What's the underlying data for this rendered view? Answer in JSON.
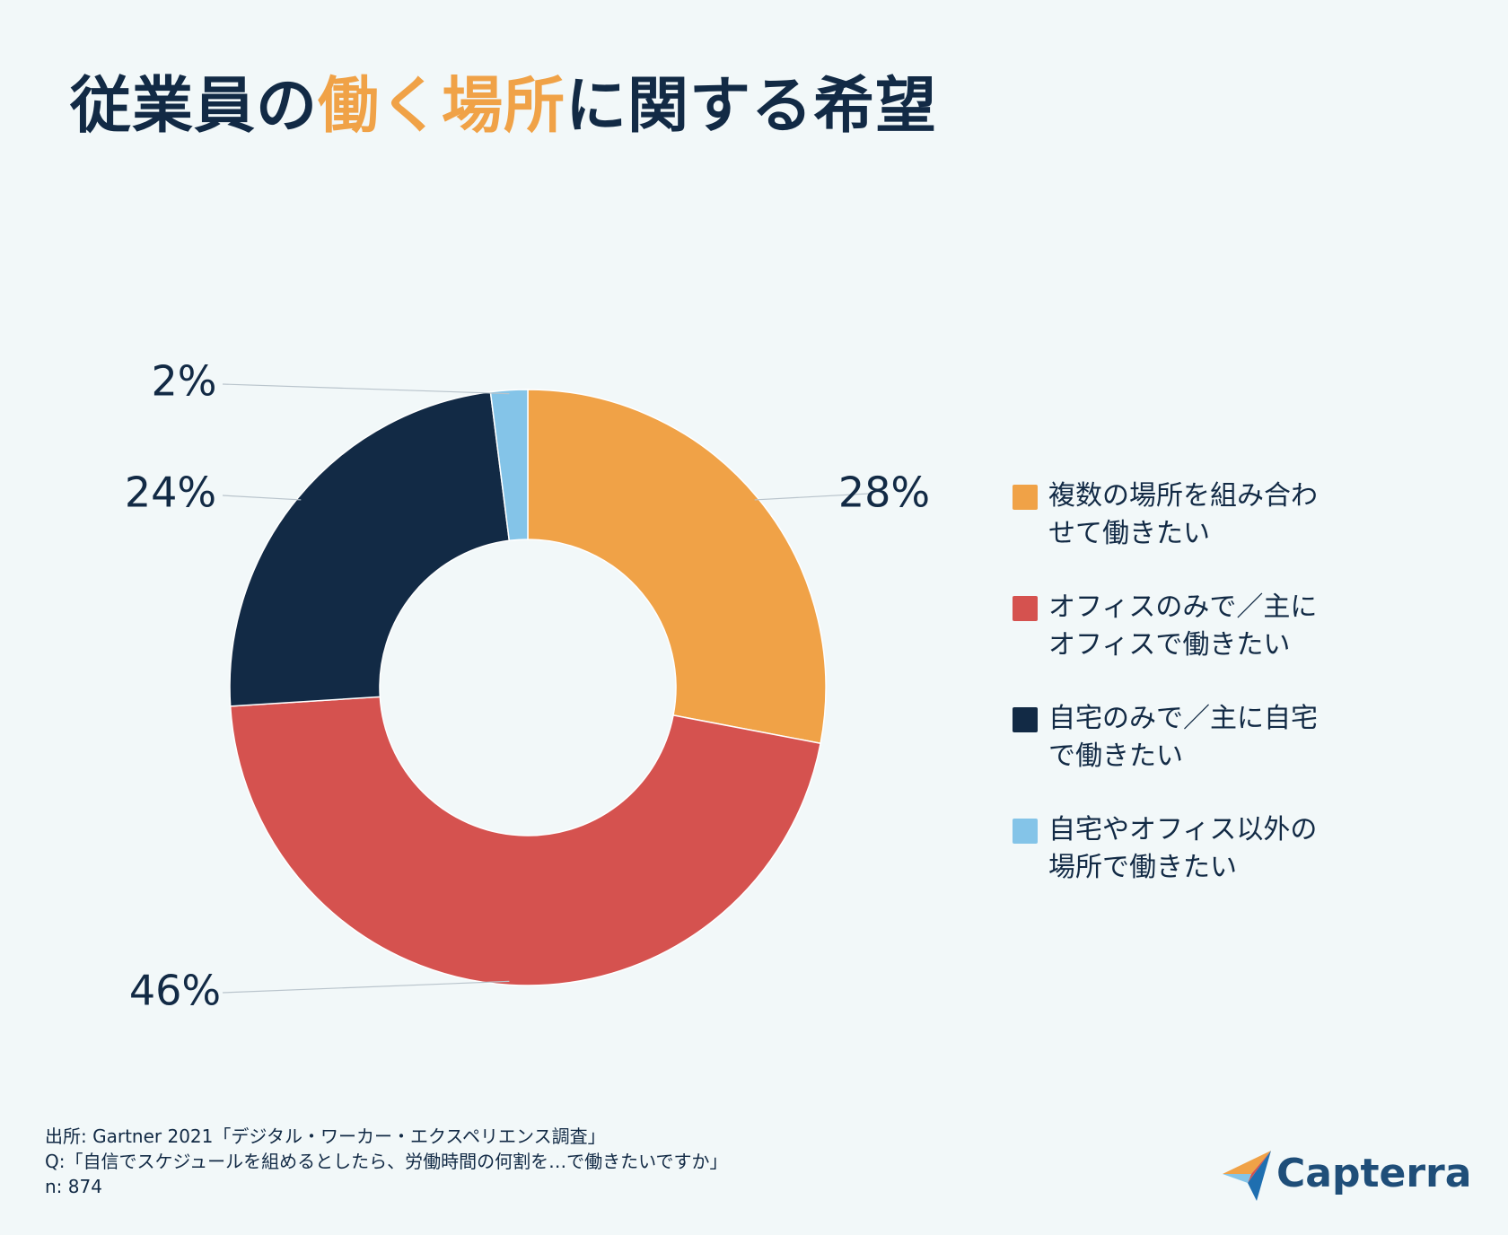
{
  "title": {
    "part1": "従業員の",
    "highlight": "働く場所",
    "part2": "に関する希望"
  },
  "chart_data": {
    "type": "pie",
    "donut": true,
    "categories": [
      "複数の場所を組み合わせて働きたい",
      "オフィスのみで／主にオフィスで働きたい",
      "自宅のみで／主に自宅で働きたい",
      "自宅やオフィス以外の場所で働きたい"
    ],
    "values": [
      28,
      46,
      24,
      2
    ],
    "value_labels": [
      "28%",
      "46%",
      "24%",
      "2%"
    ],
    "colors": [
      "#f0a247",
      "#d5524f",
      "#122a45",
      "#84c4e8"
    ],
    "legend_position": "right"
  },
  "legend": [
    {
      "line1": "複数の場所を組み合わ",
      "line2": "せて働きたい",
      "color": "#f0a247"
    },
    {
      "line1": "オフィスのみで／主に",
      "line2": "オフィスで働きたい",
      "color": "#d5524f"
    },
    {
      "line1": "自宅のみで／主に自宅",
      "line2": "で働きたい",
      "color": "#122a45"
    },
    {
      "line1": "自宅やオフィス以外の",
      "line2": "場所で働きたい",
      "color": "#84c4e8"
    }
  ],
  "footer": {
    "source": "出所: Gartner 2021「デジタル・ワーカー・エクスペリエンス調査」",
    "question": "Q:「自信でスケジュールを組めるとしたら、労働時間の何割を…で働きたいですか」",
    "n": "n: 874"
  },
  "brand": {
    "name": "Capterra"
  }
}
